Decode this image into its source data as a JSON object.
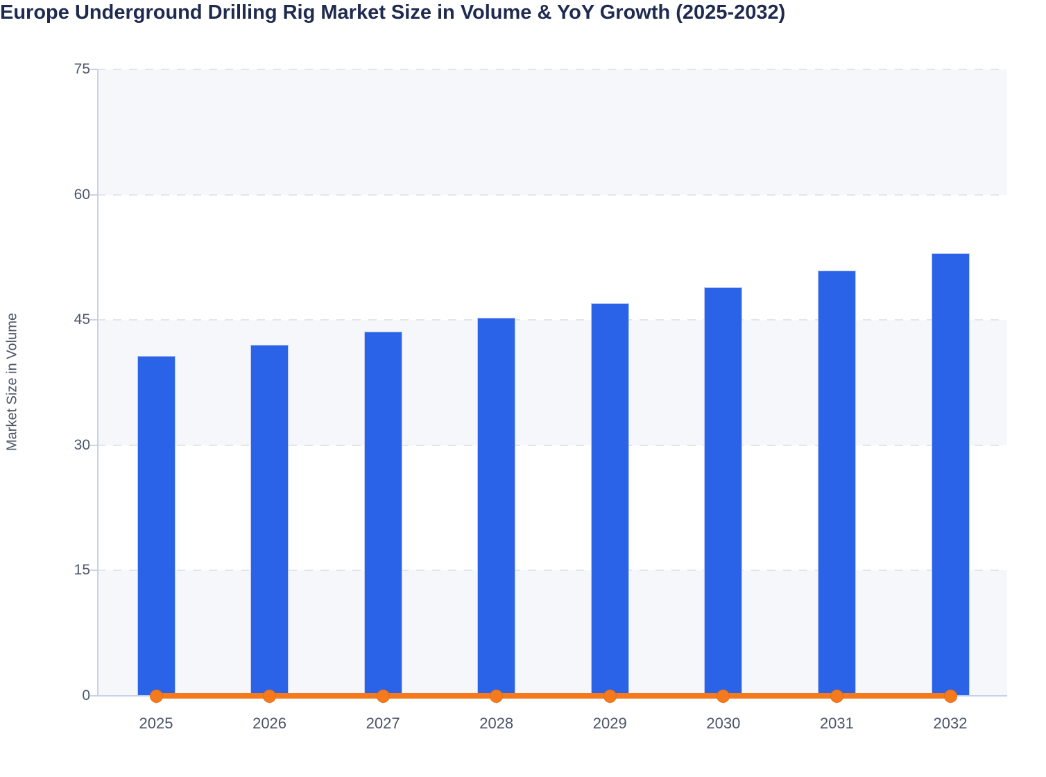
{
  "chart_data": {
    "type": "bar",
    "title": "Europe Underground Drilling Rig Market Size in Volume & YoY Growth (2025-2032)",
    "ylabel": "Market Size in Volume",
    "xlabel": "",
    "categories": [
      "2025",
      "2026",
      "2027",
      "2028",
      "2029",
      "2030",
      "2031",
      "2032"
    ],
    "series": [
      {
        "name": "Market Size in Volume",
        "type": "bar",
        "values": [
          40.7,
          42.0,
          43.6,
          45.3,
          47.0,
          48.9,
          50.9,
          53.0
        ]
      },
      {
        "name": "YoY Growth",
        "type": "line",
        "values": [
          0,
          0,
          0,
          0,
          0,
          0,
          0,
          0
        ]
      }
    ],
    "ylim": [
      0,
      75
    ],
    "yticks": [
      0,
      15,
      30,
      45,
      60,
      75
    ],
    "grid": "horizontal-dashed",
    "legend": "none",
    "plot_bands": "alternating"
  },
  "style": {
    "bar_color": "#2b63e8",
    "line_color": "#f5791d",
    "title_color": "#1e2a4f",
    "tick_label_color": "#4c566b",
    "axis_title_color": "#4a5466",
    "axis_line_color": "#c9d1e6",
    "gridline_color": "#e2e5ec",
    "band_gray": "#f5f7fa",
    "band_white": "#ffffff"
  }
}
